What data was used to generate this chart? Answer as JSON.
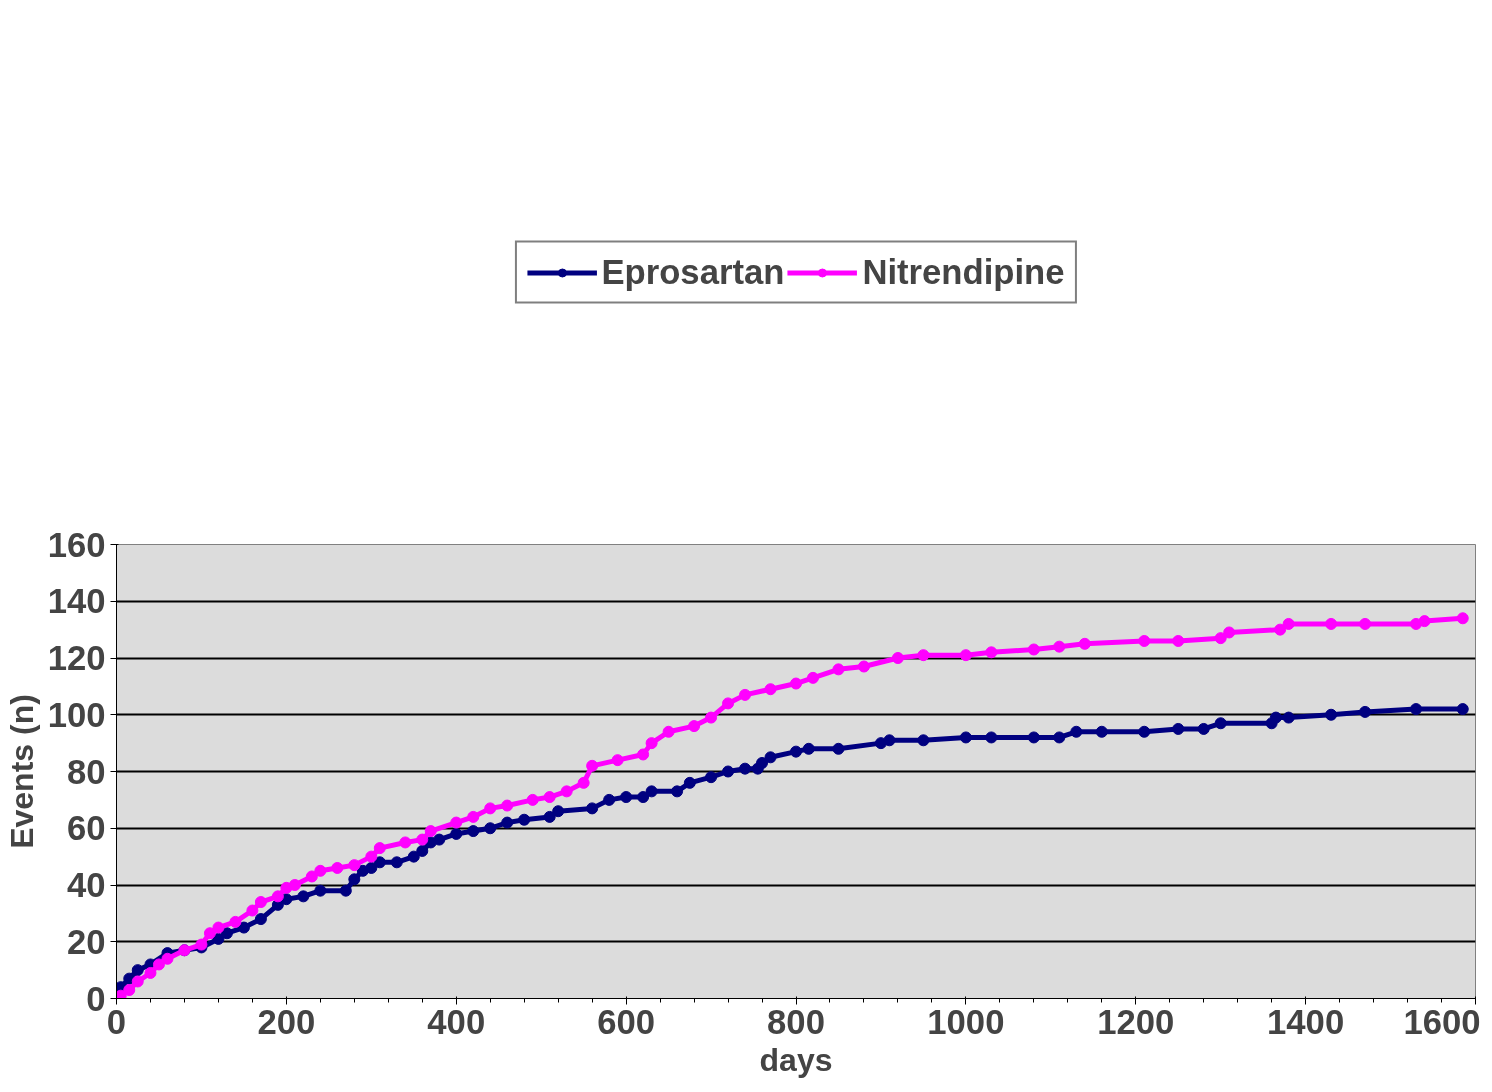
{
  "chart_data": {
    "type": "line",
    "xlabel": "days",
    "ylabel": "Events (n)",
    "xlim": [
      0,
      1600
    ],
    "ylim": [
      0,
      160
    ],
    "xticks": [
      0,
      200,
      400,
      600,
      800,
      1000,
      1200,
      1400,
      1600
    ],
    "yticks": [
      0,
      20,
      40,
      60,
      80,
      100,
      120,
      140,
      160
    ],
    "grid": "y",
    "legend": "top",
    "marker": "circle",
    "line_style": "solid",
    "series": [
      {
        "name": "Eprosartan",
        "color": "#000080",
        "x": [
          0,
          5,
          15,
          25,
          40,
          60,
          80,
          100,
          120,
          130,
          150,
          170,
          190,
          200,
          220,
          240,
          270,
          280,
          290,
          300,
          310,
          330,
          350,
          360,
          370,
          380,
          400,
          420,
          440,
          460,
          480,
          510,
          520,
          560,
          580,
          600,
          620,
          630,
          660,
          675,
          700,
          720,
          740,
          755,
          760,
          770,
          800,
          815,
          850,
          900,
          910,
          950,
          1000,
          1030,
          1080,
          1110,
          1130,
          1160,
          1210,
          1250,
          1280,
          1300,
          1360,
          1365,
          1380,
          1430,
          1470,
          1530,
          1585
        ],
        "values": [
          2,
          4,
          7,
          10,
          12,
          16,
          17,
          18,
          21,
          23,
          25,
          28,
          33,
          35,
          36,
          38,
          38,
          42,
          45,
          46,
          48,
          48,
          50,
          52,
          55,
          56,
          58,
          59,
          60,
          62,
          63,
          64,
          66,
          67,
          70,
          71,
          71,
          73,
          73,
          76,
          78,
          80,
          81,
          81,
          83,
          85,
          87,
          88,
          88,
          90,
          91,
          91,
          92,
          92,
          92,
          92,
          94,
          94,
          94,
          95,
          95,
          97,
          97,
          99,
          99,
          100,
          101,
          102,
          102
        ]
      },
      {
        "name": "Nitrendipine",
        "color": "#ff00ff",
        "x": [
          0,
          5,
          15,
          25,
          40,
          50,
          60,
          80,
          100,
          110,
          120,
          140,
          160,
          170,
          190,
          200,
          210,
          230,
          240,
          260,
          280,
          300,
          310,
          340,
          360,
          370,
          400,
          420,
          440,
          460,
          490,
          510,
          530,
          550,
          560,
          590,
          620,
          630,
          650,
          680,
          700,
          720,
          740,
          770,
          800,
          820,
          850,
          880,
          920,
          950,
          1000,
          1030,
          1080,
          1110,
          1140,
          1210,
          1250,
          1300,
          1310,
          1370,
          1380,
          1430,
          1470,
          1530,
          1540,
          1585
        ],
        "values": [
          0,
          1,
          3,
          6,
          9,
          12,
          14,
          17,
          19,
          23,
          25,
          27,
          31,
          34,
          36,
          39,
          40,
          43,
          45,
          46,
          47,
          50,
          53,
          55,
          56,
          59,
          62,
          64,
          67,
          68,
          70,
          71,
          73,
          76,
          82,
          84,
          86,
          90,
          94,
          96,
          99,
          104,
          107,
          109,
          111,
          113,
          116,
          117,
          120,
          121,
          121,
          122,
          123,
          124,
          125,
          126,
          126,
          127,
          129,
          130,
          132,
          132,
          132,
          132,
          133,
          134
        ]
      }
    ]
  }
}
